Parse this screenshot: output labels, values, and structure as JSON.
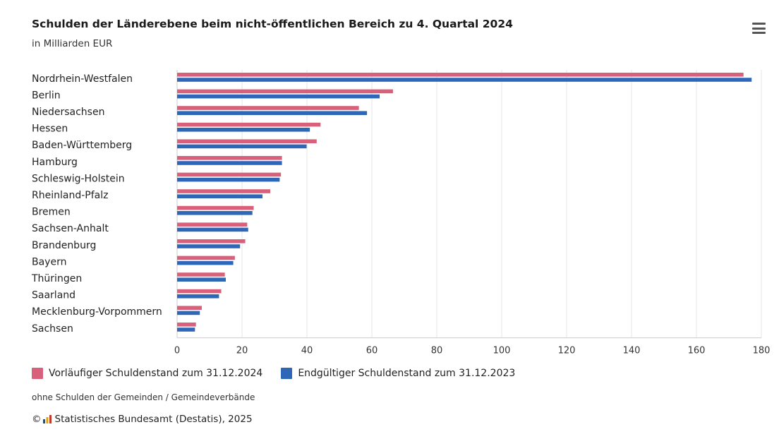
{
  "header": {
    "title": "Schulden der Länderebene beim nicht-öffentlichen Bereich zu 4. Quartal 2024",
    "subtitle": "in Milliarden EUR"
  },
  "menu": {
    "icon": "hamburger-menu-icon"
  },
  "chart_data": {
    "type": "bar",
    "orientation": "horizontal",
    "title": "Schulden der Länderebene beim nicht-öffentlichen Bereich zu 4. Quartal 2024",
    "subtitle": "in Milliarden EUR",
    "categories": [
      "Nordrhein-Westfalen",
      "Berlin",
      "Niedersachsen",
      "Hessen",
      "Baden-Württemberg",
      "Hamburg",
      "Schleswig-Holstein",
      "Rheinland-Pfalz",
      "Bremen",
      "Sachsen-Anhalt",
      "Brandenburg",
      "Bayern",
      "Thüringen",
      "Saarland",
      "Mecklenburg-Vorpommern",
      "Sachsen"
    ],
    "series": [
      {
        "name": "Vorläufiger Schuldenstand zum 31.12.2024",
        "color": "#d9607a",
        "values": [
          174.5,
          66.5,
          56.0,
          44.2,
          43.0,
          32.3,
          32.0,
          28.7,
          23.6,
          21.6,
          21.0,
          17.8,
          14.7,
          13.6,
          7.6,
          5.8
        ]
      },
      {
        "name": "Endgültiger Schuldenstand zum 31.12.2023",
        "color": "#2e67b8",
        "values": [
          177.0,
          62.4,
          58.5,
          40.9,
          39.9,
          32.3,
          31.6,
          26.3,
          23.2,
          21.9,
          19.4,
          17.3,
          15.0,
          12.9,
          7.0,
          5.5
        ]
      }
    ],
    "xlim": [
      0,
      180
    ],
    "xticks": [
      "0",
      "20",
      "40",
      "60",
      "80",
      "100",
      "120",
      "140",
      "160",
      "180"
    ],
    "grid": true,
    "legend_position": "bottom-left"
  },
  "footnote": "ohne Schulden der Gemeinden / Gemeindeverbände",
  "source": {
    "copyright": "©",
    "logo_icon": "destatis-logo-icon",
    "text": "Statistisches Bundesamt (Destatis), 2025"
  }
}
